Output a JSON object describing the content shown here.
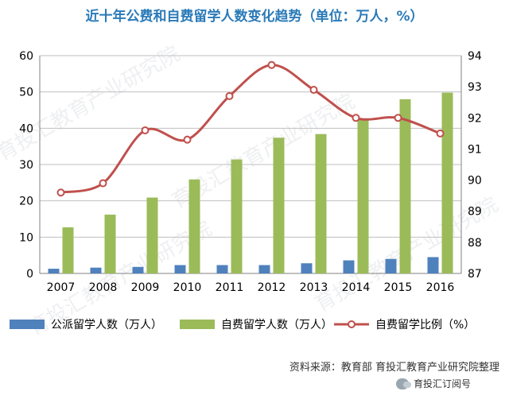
{
  "title": "近十年公费和自费留学人数变化趋势（单位：万人，%）",
  "source": "资料来源：教育部  育投汇教育产业研究院整理",
  "wechat": "育投汇订阅号",
  "watermark": "育投汇教育产业研究院",
  "chart_data": {
    "type": "bar",
    "categories": [
      "2007",
      "2008",
      "2009",
      "2010",
      "2011",
      "2012",
      "2013",
      "2014",
      "2015",
      "2016"
    ],
    "series": [
      {
        "name": "公派留学人数（万人）",
        "type": "bar",
        "axis": "left",
        "color": "#4f81bd",
        "values": [
          1.3,
          1.6,
          1.8,
          2.3,
          2.3,
          2.3,
          2.8,
          3.6,
          4.0,
          4.5
        ]
      },
      {
        "name": "自费留学人数（万人）",
        "type": "bar",
        "axis": "left",
        "color": "#9bbb59",
        "values": [
          12.7,
          16.2,
          20.9,
          25.9,
          31.4,
          37.4,
          38.4,
          42.3,
          48.0,
          49.8
        ]
      },
      {
        "name": "自费留学比例（%）",
        "type": "line",
        "axis": "right",
        "color": "#c0504d",
        "values": [
          89.6,
          89.9,
          91.6,
          91.3,
          92.7,
          93.7,
          92.9,
          92.0,
          92.0,
          91.5
        ]
      }
    ],
    "y_left": {
      "min": 0,
      "max": 60,
      "ticks": [
        0,
        10,
        20,
        30,
        40,
        50,
        60
      ]
    },
    "y_right": {
      "min": 87,
      "max": 94,
      "ticks": [
        87,
        88,
        89,
        90,
        91,
        92,
        93,
        94
      ]
    },
    "grid": true,
    "legend": "bottom"
  }
}
